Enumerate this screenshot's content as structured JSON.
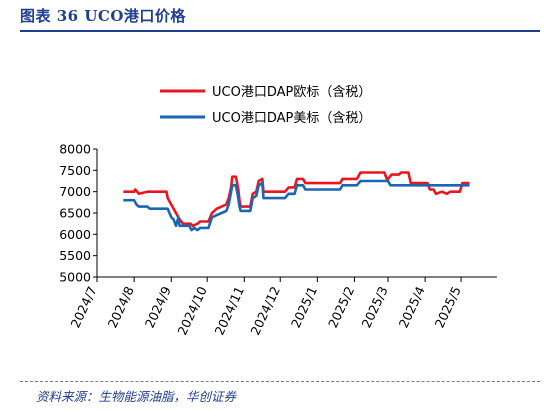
{
  "figure": {
    "title": "图表 36 UCO港口价格",
    "source": "资料来源：生物能源油脂，华创证券"
  },
  "chart_data": {
    "type": "line",
    "title": "",
    "xlabel": "",
    "ylabel": "",
    "x_range": [
      "2024-07-01",
      "2025-05-31"
    ],
    "ylim": [
      5000,
      8000
    ],
    "y_ticks": [
      5000,
      5500,
      6000,
      6500,
      7000,
      7500,
      8000
    ],
    "x_tick_labels": [
      "2024/7",
      "2024/8",
      "2024/9",
      "2024/10",
      "2024/11",
      "2024/12",
      "2025/1",
      "2025/2",
      "2025/3",
      "2025/4",
      "2025/5"
    ],
    "x_tick_dates": [
      "2024-07-01",
      "2024-08-01",
      "2024-09-01",
      "2024-10-01",
      "2024-11-01",
      "2024-12-01",
      "2025-01-01",
      "2025-02-01",
      "2025-03-01",
      "2025-04-01",
      "2025-05-01"
    ],
    "grid": false,
    "legend_position": "top",
    "series": [
      {
        "name": "UCO港口DAP欧标（含税）",
        "color": "#e8171f",
        "points": [
          [
            "2024-07-23",
            7000
          ],
          [
            "2024-08-01",
            7000
          ],
          [
            "2024-08-02",
            7050
          ],
          [
            "2024-08-05",
            6950
          ],
          [
            "2024-08-12",
            7000
          ],
          [
            "2024-08-28",
            7000
          ],
          [
            "2024-08-29",
            6850
          ],
          [
            "2024-09-02",
            6650
          ],
          [
            "2024-09-05",
            6500
          ],
          [
            "2024-09-08",
            6350
          ],
          [
            "2024-09-11",
            6250
          ],
          [
            "2024-09-17",
            6250
          ],
          [
            "2024-09-19",
            6200
          ],
          [
            "2024-09-23",
            6250
          ],
          [
            "2024-09-25",
            6300
          ],
          [
            "2024-10-02",
            6300
          ],
          [
            "2024-10-05",
            6500
          ],
          [
            "2024-10-09",
            6600
          ],
          [
            "2024-10-13",
            6650
          ],
          [
            "2024-10-17",
            6700
          ],
          [
            "2024-10-19",
            6850
          ],
          [
            "2024-10-21",
            7100
          ],
          [
            "2024-10-22",
            7350
          ],
          [
            "2024-10-25",
            7350
          ],
          [
            "2024-10-27",
            7050
          ],
          [
            "2024-10-28",
            6800
          ],
          [
            "2024-10-29",
            6650
          ],
          [
            "2024-11-06",
            6650
          ],
          [
            "2024-11-08",
            6950
          ],
          [
            "2024-11-11",
            7000
          ],
          [
            "2024-11-13",
            7250
          ],
          [
            "2024-11-16",
            7300
          ],
          [
            "2024-11-17",
            7000
          ],
          [
            "2024-12-05",
            7000
          ],
          [
            "2024-12-08",
            7100
          ],
          [
            "2024-12-13",
            7100
          ],
          [
            "2024-12-15",
            7300
          ],
          [
            "2024-12-20",
            7300
          ],
          [
            "2024-12-22",
            7200
          ],
          [
            "2025-01-20",
            7200
          ],
          [
            "2025-01-22",
            7300
          ],
          [
            "2025-02-03",
            7300
          ],
          [
            "2025-02-06",
            7450
          ],
          [
            "2025-02-26",
            7450
          ],
          [
            "2025-02-28",
            7300
          ],
          [
            "2025-03-01",
            7300
          ],
          [
            "2025-03-04",
            7400
          ],
          [
            "2025-03-10",
            7400
          ],
          [
            "2025-03-12",
            7450
          ],
          [
            "2025-03-18",
            7450
          ],
          [
            "2025-03-20",
            7200
          ],
          [
            "2025-04-03",
            7200
          ],
          [
            "2025-04-05",
            7050
          ],
          [
            "2025-04-08",
            7050
          ],
          [
            "2025-04-10",
            6950
          ],
          [
            "2025-04-15",
            7000
          ],
          [
            "2025-04-19",
            6950
          ],
          [
            "2025-04-22",
            7000
          ],
          [
            "2025-04-30",
            7000
          ],
          [
            "2025-05-02",
            7200
          ],
          [
            "2025-05-08",
            7200
          ]
        ]
      },
      {
        "name": "UCO港口DAP美标（含税）",
        "color": "#1a66b5",
        "points": [
          [
            "2024-07-23",
            6800
          ],
          [
            "2024-08-01",
            6800
          ],
          [
            "2024-08-03",
            6700
          ],
          [
            "2024-08-05",
            6650
          ],
          [
            "2024-08-12",
            6650
          ],
          [
            "2024-08-14",
            6600
          ],
          [
            "2024-08-29",
            6600
          ],
          [
            "2024-09-01",
            6400
          ],
          [
            "2024-09-03",
            6350
          ],
          [
            "2024-09-05",
            6200
          ],
          [
            "2024-09-07",
            6400
          ],
          [
            "2024-09-08",
            6200
          ],
          [
            "2024-09-16",
            6200
          ],
          [
            "2024-09-18",
            6100
          ],
          [
            "2024-09-20",
            6150
          ],
          [
            "2024-09-23",
            6100
          ],
          [
            "2024-09-25",
            6150
          ],
          [
            "2024-10-02",
            6150
          ],
          [
            "2024-10-05",
            6400
          ],
          [
            "2024-10-09",
            6450
          ],
          [
            "2024-10-13",
            6500
          ],
          [
            "2024-10-17",
            6550
          ],
          [
            "2024-10-19",
            6700
          ],
          [
            "2024-10-21",
            7000
          ],
          [
            "2024-10-22",
            7150
          ],
          [
            "2024-10-25",
            7150
          ],
          [
            "2024-10-27",
            6850
          ],
          [
            "2024-10-28",
            6650
          ],
          [
            "2024-10-29",
            6550
          ],
          [
            "2024-11-06",
            6550
          ],
          [
            "2024-11-08",
            6850
          ],
          [
            "2024-11-11",
            6900
          ],
          [
            "2024-11-13",
            7150
          ],
          [
            "2024-11-16",
            7200
          ],
          [
            "2024-11-17",
            6850
          ],
          [
            "2024-12-05",
            6850
          ],
          [
            "2024-12-08",
            6950
          ],
          [
            "2024-12-13",
            6950
          ],
          [
            "2024-12-15",
            7150
          ],
          [
            "2024-12-20",
            7150
          ],
          [
            "2024-12-22",
            7050
          ],
          [
            "2025-01-20",
            7050
          ],
          [
            "2025-01-22",
            7150
          ],
          [
            "2025-02-03",
            7150
          ],
          [
            "2025-02-06",
            7250
          ],
          [
            "2025-03-01",
            7250
          ],
          [
            "2025-03-03",
            7150
          ],
          [
            "2025-05-04",
            7150
          ],
          [
            "2025-05-08",
            7150
          ]
        ]
      }
    ]
  }
}
